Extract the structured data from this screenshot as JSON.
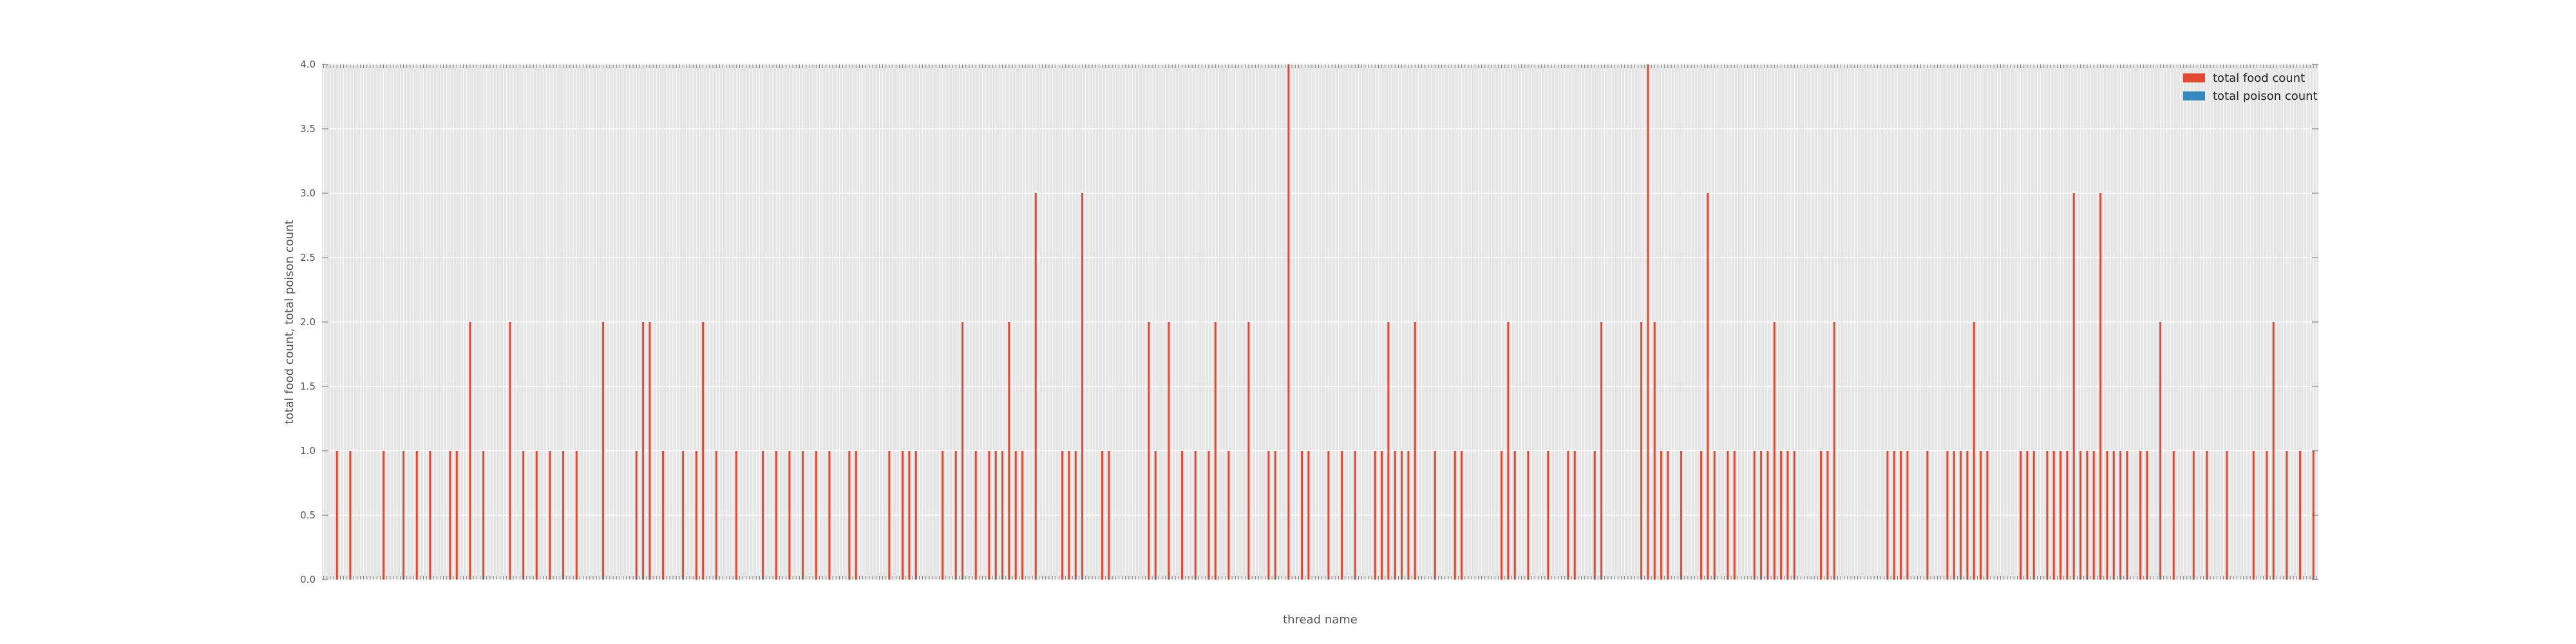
{
  "chart_data": {
    "type": "bar",
    "xlabel": "thread name",
    "ylabel": "total food count, total poison count",
    "ylim": [
      0,
      4.0
    ],
    "yticks": [
      "0.0",
      "0.5",
      "1.0",
      "1.5",
      "2.0",
      "2.5",
      "3.0",
      "3.5",
      "4.0"
    ],
    "grid": true,
    "legend_position": "top-right",
    "legend": [
      "total food count",
      "total poison count"
    ],
    "categories_count": 600,
    "series": [
      {
        "name": "total food count",
        "color": "#e24a33",
        "points": [
          [
            4,
            1
          ],
          [
            8,
            1
          ],
          [
            18,
            1
          ],
          [
            24,
            1
          ],
          [
            28,
            1
          ],
          [
            32,
            1
          ],
          [
            38,
            1
          ],
          [
            40,
            1
          ],
          [
            44,
            2
          ],
          [
            48,
            1
          ],
          [
            56,
            2
          ],
          [
            60,
            1
          ],
          [
            64,
            1
          ],
          [
            68,
            1
          ],
          [
            72,
            1
          ],
          [
            76,
            1
          ],
          [
            84,
            2
          ],
          [
            94,
            1
          ],
          [
            96,
            2
          ],
          [
            98,
            2
          ],
          [
            102,
            1
          ],
          [
            108,
            1
          ],
          [
            112,
            1
          ],
          [
            114,
            2
          ],
          [
            118,
            1
          ],
          [
            124,
            1
          ],
          [
            132,
            1
          ],
          [
            136,
            1
          ],
          [
            140,
            1
          ],
          [
            144,
            1
          ],
          [
            148,
            1
          ],
          [
            152,
            1
          ],
          [
            158,
            1
          ],
          [
            160,
            1
          ],
          [
            170,
            1
          ],
          [
            174,
            1
          ],
          [
            176,
            1
          ],
          [
            178,
            1
          ],
          [
            186,
            1
          ],
          [
            190,
            1
          ],
          [
            192,
            2
          ],
          [
            196,
            1
          ],
          [
            200,
            1
          ],
          [
            202,
            1
          ],
          [
            204,
            1
          ],
          [
            206,
            2
          ],
          [
            208,
            1
          ],
          [
            210,
            1
          ],
          [
            214,
            3
          ],
          [
            222,
            1
          ],
          [
            224,
            1
          ],
          [
            226,
            1
          ],
          [
            228,
            3
          ],
          [
            234,
            1
          ],
          [
            236,
            1
          ],
          [
            248,
            2
          ],
          [
            250,
            1
          ],
          [
            254,
            2
          ],
          [
            258,
            1
          ],
          [
            262,
            1
          ],
          [
            266,
            1
          ],
          [
            268,
            2
          ],
          [
            272,
            1
          ],
          [
            278,
            2
          ],
          [
            284,
            1
          ],
          [
            286,
            1
          ],
          [
            290,
            4
          ],
          [
            294,
            1
          ],
          [
            296,
            1
          ],
          [
            302,
            1
          ],
          [
            306,
            1
          ],
          [
            310,
            1
          ],
          [
            316,
            1
          ],
          [
            318,
            1
          ],
          [
            318,
            1
          ],
          [
            320,
            2
          ],
          [
            322,
            1
          ],
          [
            324,
            1
          ],
          [
            326,
            1
          ],
          [
            328,
            2
          ],
          [
            334,
            1
          ],
          [
            340,
            1
          ],
          [
            342,
            1
          ],
          [
            354,
            1
          ],
          [
            356,
            2
          ],
          [
            358,
            1
          ],
          [
            362,
            1
          ],
          [
            368,
            1
          ],
          [
            374,
            1
          ],
          [
            376,
            1
          ],
          [
            382,
            1
          ],
          [
            384,
            2
          ],
          [
            396,
            2
          ],
          [
            398,
            4
          ],
          [
            400,
            2
          ],
          [
            402,
            1
          ],
          [
            404,
            1
          ],
          [
            408,
            1
          ],
          [
            414,
            1
          ],
          [
            416,
            3
          ],
          [
            418,
            1
          ],
          [
            422,
            1
          ],
          [
            424,
            1
          ],
          [
            430,
            1
          ],
          [
            432,
            1
          ],
          [
            434,
            1
          ],
          [
            436,
            2
          ],
          [
            438,
            1
          ],
          [
            440,
            1
          ],
          [
            442,
            1
          ],
          [
            450,
            1
          ],
          [
            452,
            1
          ],
          [
            454,
            2
          ],
          [
            470,
            1
          ],
          [
            472,
            1
          ],
          [
            474,
            1
          ],
          [
            476,
            1
          ],
          [
            482,
            1
          ],
          [
            488,
            1
          ],
          [
            490,
            1
          ],
          [
            492,
            1
          ],
          [
            494,
            1
          ],
          [
            496,
            2
          ],
          [
            498,
            1
          ],
          [
            500,
            1
          ],
          [
            510,
            1
          ],
          [
            512,
            1
          ],
          [
            514,
            1
          ],
          [
            518,
            1
          ],
          [
            520,
            1
          ],
          [
            522,
            1
          ],
          [
            524,
            1
          ],
          [
            526,
            3
          ],
          [
            528,
            1
          ],
          [
            530,
            1
          ],
          [
            532,
            1
          ],
          [
            534,
            3
          ],
          [
            536,
            1
          ],
          [
            538,
            1
          ],
          [
            540,
            1
          ],
          [
            542,
            1
          ],
          [
            546,
            1
          ],
          [
            548,
            1
          ],
          [
            552,
            2
          ],
          [
            556,
            1
          ],
          [
            562,
            1
          ],
          [
            566,
            1
          ],
          [
            572,
            1
          ],
          [
            580,
            1
          ],
          [
            584,
            1
          ],
          [
            586,
            2
          ],
          [
            590,
            1
          ],
          [
            594,
            1
          ],
          [
            598,
            1
          ]
        ]
      },
      {
        "name": "total poison count",
        "color": "#348abd",
        "points": []
      }
    ]
  }
}
